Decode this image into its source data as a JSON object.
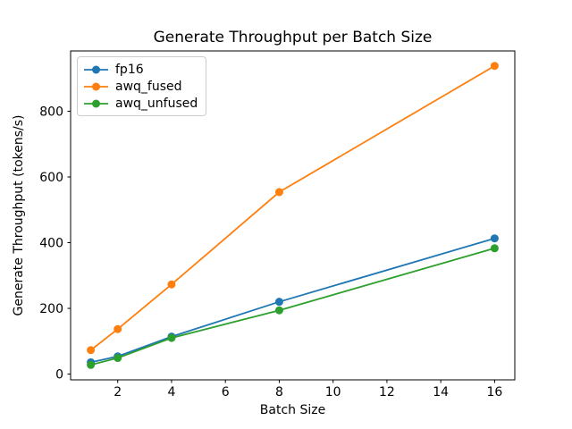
{
  "chart_data": {
    "type": "line",
    "title": "Generate Throughput per Batch Size",
    "xlabel": "Batch Size",
    "ylabel": "Generate Throughput (tokens/s)",
    "x": [
      1,
      2,
      4,
      8,
      16
    ],
    "series": [
      {
        "name": "fp16",
        "color": "#1f77b4",
        "values": [
          36,
          54,
          114,
          220,
          413
        ]
      },
      {
        "name": "awq_fused",
        "color": "#ff7f0e",
        "values": [
          73,
          137,
          273,
          554,
          938
        ]
      },
      {
        "name": "awq_unfused",
        "color": "#2ca02c",
        "values": [
          28,
          49,
          110,
          194,
          383
        ]
      }
    ],
    "x_ticks": [
      2,
      4,
      6,
      8,
      10,
      12,
      14,
      16
    ],
    "y_ticks": [
      0,
      200,
      400,
      600,
      800
    ],
    "xlim": [
      0.25,
      16.75
    ],
    "ylim": [
      -17.5,
      983.5
    ],
    "grid": false,
    "legend_position": "upper left",
    "marker": "o",
    "background_color": "#ffffff",
    "axis_color": "#000000"
  }
}
